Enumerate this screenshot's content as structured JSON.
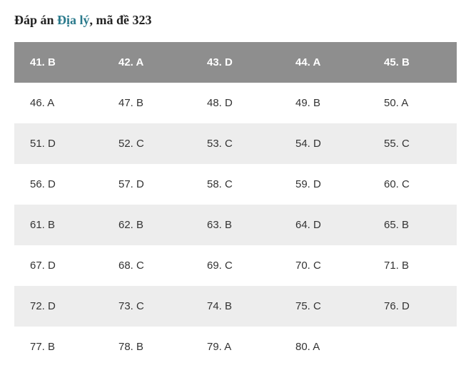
{
  "heading": {
    "prefix": "Đáp án ",
    "link": "Địa lý",
    "suffix": ", mã đề 323"
  },
  "table": {
    "type": "table",
    "columns": 5,
    "header_bg": "#8e8e8e",
    "header_fg": "#ffffff",
    "row_odd_bg": "#ffffff",
    "row_even_bg": "#ededed",
    "cell_fg": "#333333",
    "cell_fontsize": 15,
    "rows": [
      {
        "kind": "header",
        "cells": [
          "41. B",
          "42. A",
          "43. D",
          "44. A",
          "45. B"
        ]
      },
      {
        "kind": "odd",
        "cells": [
          "46. A",
          "47. B",
          "48. D",
          "49. B",
          "50. A"
        ]
      },
      {
        "kind": "even",
        "cells": [
          "51. D",
          "52. C",
          "53. C",
          "54. D",
          "55. C"
        ]
      },
      {
        "kind": "odd",
        "cells": [
          "56. D",
          "57. D",
          "58. C",
          "59. D",
          "60. C"
        ]
      },
      {
        "kind": "even",
        "cells": [
          "61. B",
          "62. B",
          "63. B",
          "64. D",
          "65. B"
        ]
      },
      {
        "kind": "odd",
        "cells": [
          "67. D",
          "68. C",
          "69. C",
          "70. C",
          "71. B"
        ]
      },
      {
        "kind": "even",
        "cells": [
          "72. D",
          "73. C",
          "74. B",
          "75. C",
          "76. D"
        ]
      },
      {
        "kind": "odd",
        "cells": [
          "77. B",
          "78. B",
          "79. A",
          "80. A",
          ""
        ]
      }
    ]
  }
}
